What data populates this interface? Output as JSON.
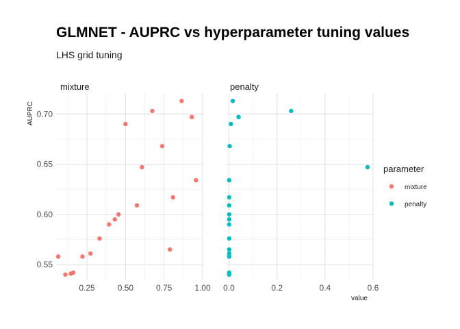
{
  "chart_data": {
    "type": "scatter",
    "title": "GLMNET - AUPRC vs hyperparameter tuning values",
    "subtitle": "LHS grid tuning",
    "ylabel": "AUPRC",
    "xlabel": "value",
    "ylim": [
      0.535,
      0.72
    ],
    "grid": true,
    "legend": {
      "title": "parameter",
      "position": "right",
      "entries": [
        {
          "name": "mixture",
          "color": "#F8766D"
        },
        {
          "name": "penalty",
          "color": "#00BFC4"
        }
      ]
    },
    "y_ticks": [
      0.55,
      0.6,
      0.65,
      0.7
    ],
    "y_tick_labels": [
      "0.55",
      "0.60",
      "0.65",
      "0.70"
    ],
    "panels": [
      {
        "label": "mixture",
        "series": "mixture",
        "color": "#F8766D",
        "xlim": [
          0.05,
          1.0
        ],
        "x_ticks": [
          0.25,
          0.5,
          0.75,
          1.0
        ],
        "x_tick_labels": [
          "0.25",
          "0.50",
          "0.75",
          "1.00"
        ],
        "points": [
          {
            "x": 0.064,
            "y": 0.558
          },
          {
            "x": 0.11,
            "y": 0.54
          },
          {
            "x": 0.146,
            "y": 0.541
          },
          {
            "x": 0.161,
            "y": 0.542
          },
          {
            "x": 0.221,
            "y": 0.558
          },
          {
            "x": 0.273,
            "y": 0.561
          },
          {
            "x": 0.332,
            "y": 0.576
          },
          {
            "x": 0.393,
            "y": 0.59
          },
          {
            "x": 0.431,
            "y": 0.595
          },
          {
            "x": 0.455,
            "y": 0.6
          },
          {
            "x": 0.5,
            "y": 0.69
          },
          {
            "x": 0.574,
            "y": 0.609
          },
          {
            "x": 0.607,
            "y": 0.647
          },
          {
            "x": 0.674,
            "y": 0.703
          },
          {
            "x": 0.738,
            "y": 0.668
          },
          {
            "x": 0.788,
            "y": 0.565
          },
          {
            "x": 0.808,
            "y": 0.617
          },
          {
            "x": 0.864,
            "y": 0.713
          },
          {
            "x": 0.93,
            "y": 0.697
          },
          {
            "x": 0.957,
            "y": 0.634
          }
        ]
      },
      {
        "label": "penalty",
        "series": "penalty",
        "color": "#00BFC4",
        "xlim": [
          -0.01,
          0.6
        ],
        "x_ticks": [
          0.0,
          0.2,
          0.4,
          0.6
        ],
        "x_tick_labels": [
          "0.0",
          "0.2",
          "0.4",
          "0.6"
        ],
        "points": [
          {
            "x": 0.016,
            "y": 0.713
          },
          {
            "x": 0.259,
            "y": 0.703
          },
          {
            "x": 0.04,
            "y": 0.697
          },
          {
            "x": 0.008,
            "y": 0.69
          },
          {
            "x": 0.003,
            "y": 0.668
          },
          {
            "x": 0.577,
            "y": 0.647
          },
          {
            "x": 0.001,
            "y": 0.634
          },
          {
            "x": 0.001,
            "y": 0.617
          },
          {
            "x": 0.001,
            "y": 0.609
          },
          {
            "x": 0.001,
            "y": 0.6
          },
          {
            "x": 0.001,
            "y": 0.595
          },
          {
            "x": 0.001,
            "y": 0.59
          },
          {
            "x": 0.001,
            "y": 0.576
          },
          {
            "x": 0.001,
            "y": 0.565
          },
          {
            "x": 0.001,
            "y": 0.561
          },
          {
            "x": 0.001,
            "y": 0.558
          },
          {
            "x": 0.001,
            "y": 0.542
          },
          {
            "x": 0.001,
            "y": 0.541
          },
          {
            "x": 0.001,
            "y": 0.54
          },
          {
            "x": 0.001,
            "y": 0.558
          }
        ]
      }
    ]
  }
}
